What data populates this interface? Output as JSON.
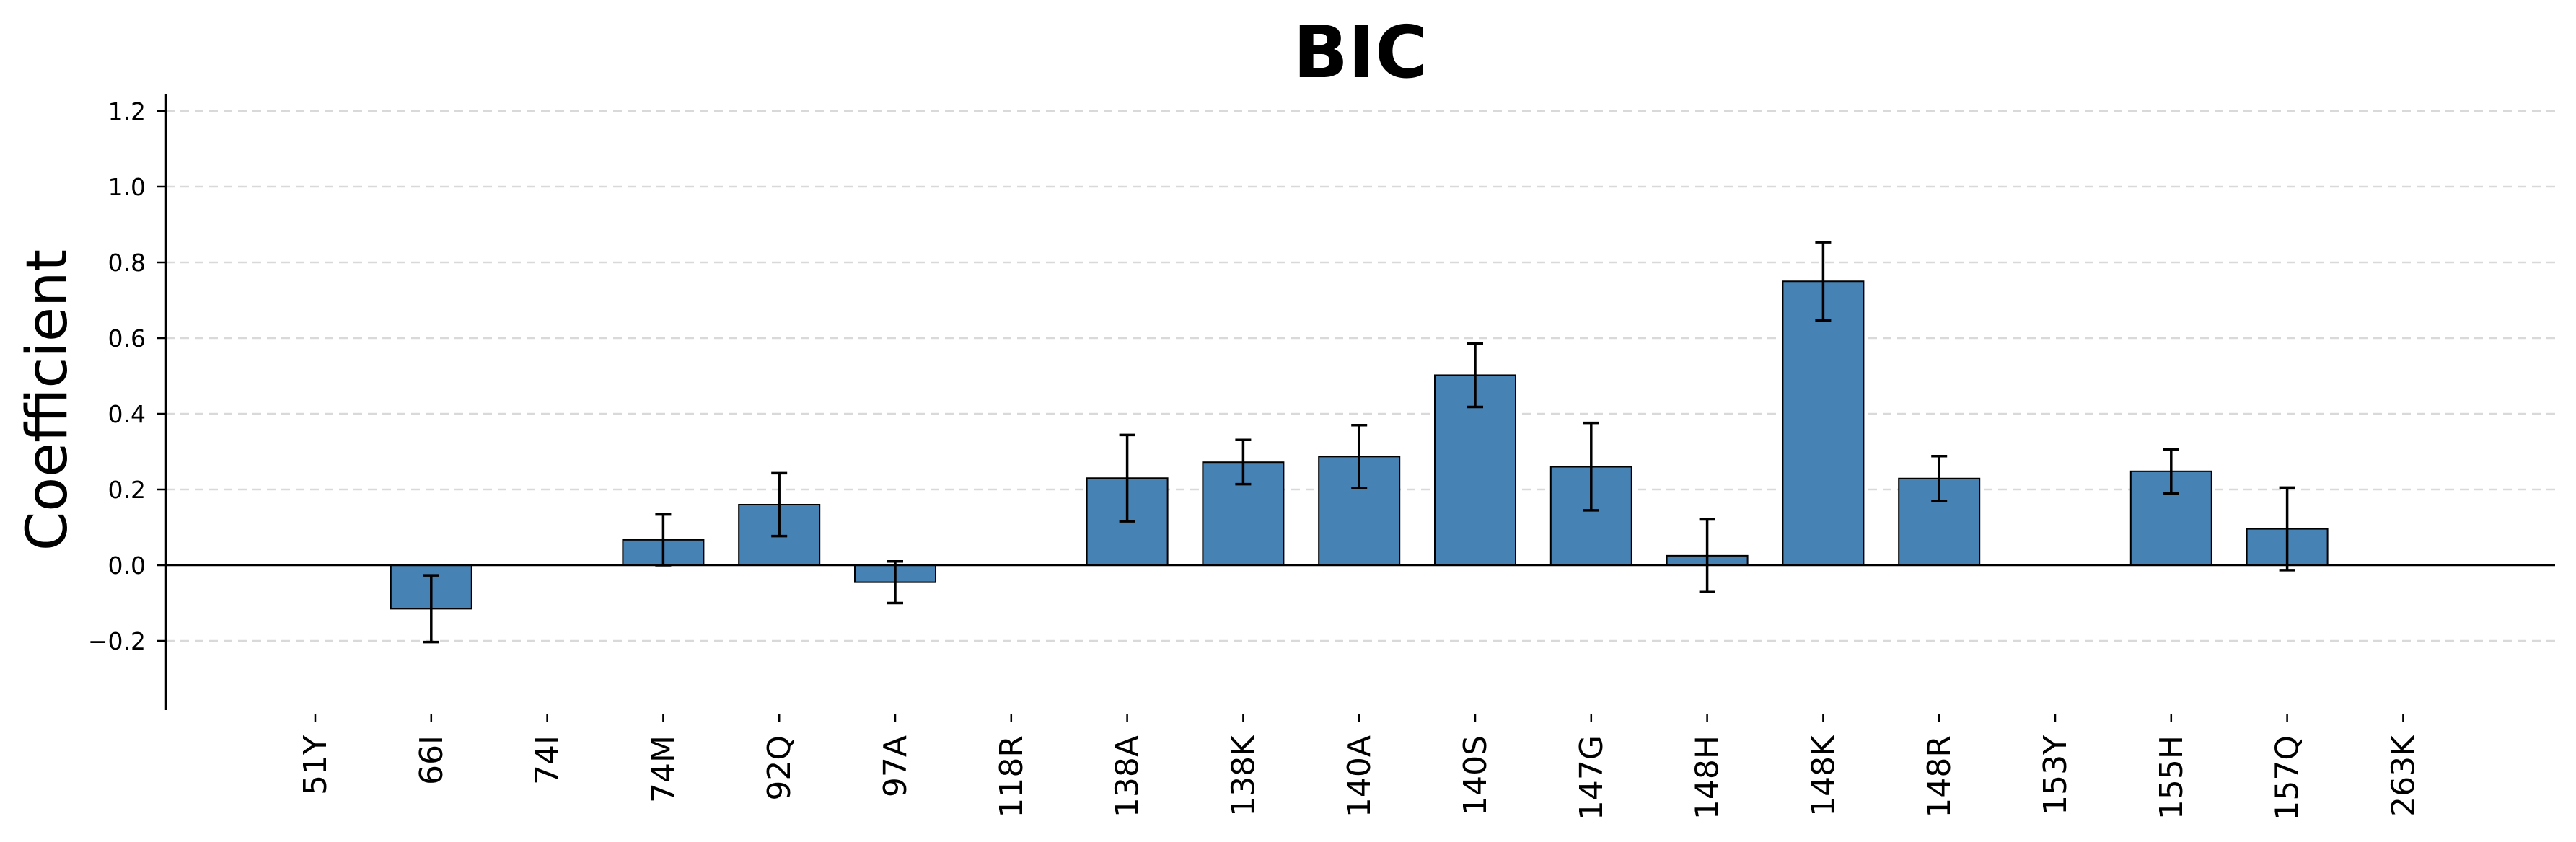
{
  "chart_data": {
    "type": "bar",
    "title": "BIC",
    "xlabel": "",
    "ylabel": "Coefficient",
    "ylim": [
      -0.38,
      1.24
    ],
    "yticks": [
      "−0.2",
      "0.0",
      "0.2",
      "0.4",
      "0.6",
      "0.8",
      "1.0",
      "1.2"
    ],
    "ytick_values": [
      -0.2,
      0.0,
      0.2,
      0.4,
      0.6,
      0.8,
      1.0,
      1.2
    ],
    "grid": "horizontal dashed",
    "categories": [
      "51Y",
      "66I",
      "74I",
      "74M",
      "92Q",
      "97A",
      "118R",
      "138A",
      "138K",
      "140A",
      "140S",
      "147G",
      "148H",
      "148K",
      "148R",
      "153Y",
      "155H",
      "157Q",
      "263K"
    ],
    "values": [
      0.0,
      -0.115,
      0.0,
      0.067,
      0.16,
      -0.045,
      0.0,
      0.23,
      0.272,
      0.287,
      0.502,
      0.26,
      0.025,
      0.75,
      0.229,
      0.0,
      0.248,
      0.096,
      0.0
    ],
    "error_low": [
      0.0,
      -0.203,
      0.0,
      0.0,
      0.077,
      -0.1,
      0.0,
      0.116,
      0.214,
      0.204,
      0.418,
      0.145,
      -0.071,
      0.647,
      0.17,
      0.0,
      0.19,
      -0.013,
      0.0
    ],
    "error_high": [
      0.0,
      -0.027,
      0.0,
      0.134,
      0.243,
      0.01,
      0.0,
      0.344,
      0.331,
      0.37,
      0.586,
      0.376,
      0.121,
      0.853,
      0.288,
      0.0,
      0.306,
      0.205,
      0.0
    ],
    "colors": {
      "bar": "#4682b4",
      "bar_edge": "#000000",
      "grid": "#d9d9d9",
      "axis": "#000000"
    }
  }
}
